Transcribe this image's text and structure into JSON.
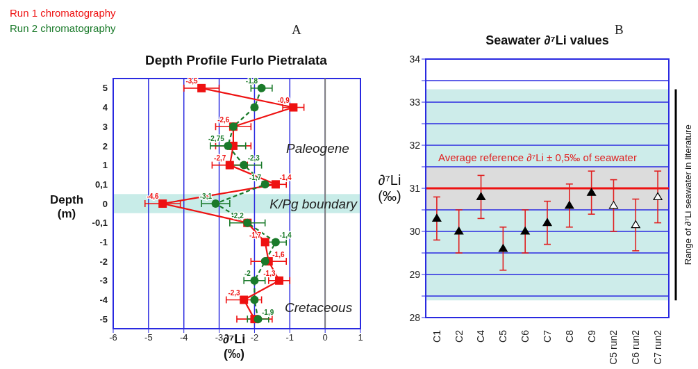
{
  "chart_data": [
    {
      "type": "line",
      "orientation": "horizontal",
      "title": "Depth Profile Furlo Pietralata",
      "xlabel": "∂⁷Li (‰)",
      "ylabel": "Depth (m)",
      "categories": [
        "5",
        "4",
        "3",
        "2",
        "1",
        "0,1",
        "0",
        "-0,1",
        "-1",
        "-2",
        "-3",
        "-4",
        "-5"
      ],
      "xlim": [
        -6,
        1
      ],
      "xticks": [
        -6,
        -5,
        -4,
        -3,
        -2,
        -1,
        0,
        1
      ],
      "grid": "x",
      "legend": "top left",
      "series": [
        {
          "name": "Run 1 chromatography",
          "color": "#ee1111",
          "marker": "square",
          "line_style": "solid",
          "values": [
            -3.5,
            -0.9,
            -2.6,
            -2.6,
            -2.7,
            -1.4,
            -4.6,
            -2.2,
            -1.7,
            -1.6,
            -1.3,
            -2.3,
            -2.0
          ],
          "errors": [
            0.5,
            0.3,
            0.5,
            0.5,
            0.5,
            0.3,
            0.5,
            null,
            null,
            0.5,
            0.3,
            0.5,
            0.5
          ],
          "value_labels": [
            "-3,5",
            "-0,9",
            "-2,6",
            null,
            "-2,7",
            "-1,4",
            "-4,6",
            null,
            "-1,7",
            "-1,6",
            "-1,3",
            "-2,3",
            null
          ]
        },
        {
          "name": "Run 2 chromatography",
          "color": "#1a7a2a",
          "marker": "circle",
          "line_style": "dashed",
          "values": [
            -1.8,
            -2.0,
            -2.6,
            -2.75,
            -2.3,
            -1.7,
            -3.1,
            -2.2,
            -1.4,
            -1.7,
            -2.0,
            -2.0,
            -1.9
          ],
          "errors": [
            0.3,
            null,
            null,
            0.5,
            0.5,
            null,
            0.4,
            0.5,
            0.3,
            null,
            0.3,
            null,
            0.3
          ],
          "value_labels": [
            "-1,8",
            null,
            null,
            "-2,75",
            "-2,3",
            "-1,7",
            "-3,1",
            "-2,2",
            "-1,4",
            null,
            "-2",
            null,
            "-1,9"
          ]
        }
      ],
      "ref_lines": [
        {
          "axis": "x",
          "value": 0,
          "color": "#808080"
        }
      ],
      "bands": [
        {
          "axis": "y",
          "from": "0",
          "to": "0",
          "label": "K/Pg boundary",
          "color": "#c8ece8"
        }
      ],
      "annotations": [
        "A",
        "Paleogene",
        "Cretaceous"
      ]
    },
    {
      "type": "scatter",
      "title": "Seawater ∂⁷Li values",
      "ylabel": "∂⁷Li (‰)",
      "categories": [
        "C1",
        "C2",
        "C4",
        "C5",
        "C6",
        "C7",
        "C8",
        "C9",
        "C5 run2",
        "C6 run2",
        "C7 run2"
      ],
      "ylim": [
        28,
        34
      ],
      "yticks": [
        28,
        {
          "value": 28.5,
          "label": null
        },
        29,
        {
          "value": 29.5,
          "label": null
        },
        30,
        {
          "value": 30.5,
          "label": null
        },
        31,
        {
          "value": 31.5,
          "label": null
        },
        32,
        {
          "value": 32.5,
          "label": null
        },
        33,
        {
          "value": 33.5,
          "label": null
        },
        34
      ],
      "grid": "y",
      "marker": "triangle",
      "series": [
        {
          "color": "#000000",
          "values": [
            30.3,
            30.0,
            30.8,
            29.6,
            30.0,
            30.2,
            30.6,
            30.9,
            null,
            null,
            null
          ],
          "errors": [
            0.5,
            0.5,
            0.5,
            0.5,
            0.5,
            0.5,
            0.5,
            0.5,
            null,
            null,
            null
          ]
        },
        {
          "color": "#ffffff",
          "values": [
            null,
            null,
            null,
            null,
            null,
            null,
            null,
            null,
            30.6,
            30.15,
            30.8
          ],
          "errors": [
            null,
            null,
            null,
            null,
            null,
            null,
            null,
            null,
            0.6,
            0.6,
            0.6
          ]
        }
      ],
      "bands": [
        {
          "axis": "y",
          "from": 28.4,
          "to": 33.3,
          "label": "Range of ∂⁷Li seawater in literature",
          "color": "#cdecea"
        },
        {
          "axis": "y",
          "from": 30.5,
          "to": 31.5,
          "label": "Average reference ∂⁷Li ± 0,5‰ of seawater",
          "color": "#dcdcdc"
        }
      ],
      "ref_lines": [
        {
          "axis": "y",
          "value": 31,
          "color": "#ee1111"
        }
      ],
      "annotations": [
        "B"
      ]
    }
  ]
}
